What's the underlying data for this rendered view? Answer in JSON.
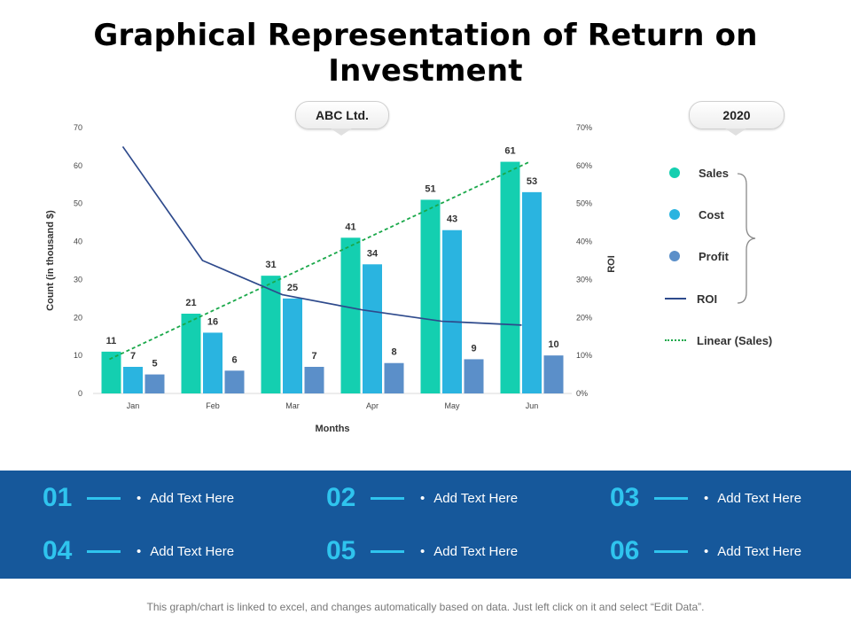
{
  "title": "Graphical Representation of Return on Investment",
  "company_badge": "ABC Ltd.",
  "year_badge": "2020",
  "colors": {
    "sales": "#14cfb0",
    "cost": "#2ab4e0",
    "profit": "#5b8fc9",
    "roi": "#2e4a8c",
    "linear": "#1aa84a",
    "band": "#16589b",
    "accent": "#2fc4ee"
  },
  "chart_data": {
    "type": "bar",
    "categories": [
      "Jan",
      "Feb",
      "Mar",
      "Apr",
      "May",
      "Jun"
    ],
    "series": [
      {
        "name": "Sales",
        "values": [
          11,
          21,
          31,
          41,
          51,
          61
        ]
      },
      {
        "name": "Cost",
        "values": [
          7,
          16,
          25,
          34,
          43,
          53
        ]
      },
      {
        "name": "Profit",
        "values": [
          5,
          6,
          7,
          8,
          9,
          10
        ]
      }
    ],
    "line_series": {
      "name": "ROI",
      "axis": "secondary",
      "values": [
        65,
        35,
        26,
        22,
        19,
        18
      ]
    },
    "trendline": {
      "name": "Linear (Sales)",
      "of": "Sales",
      "values": [
        9,
        19,
        30,
        41,
        51,
        61
      ]
    },
    "ylim": [
      0,
      70
    ],
    "y_ticks": [
      "0",
      "10",
      "20",
      "30",
      "40",
      "50",
      "60",
      "70"
    ],
    "y2lim": [
      0,
      70
    ],
    "y2_ticks": [
      "0%",
      "10%",
      "20%",
      "30%",
      "40%",
      "50%",
      "60%",
      "70%"
    ],
    "ylabel": "Count (in thousand $)",
    "y2label": "ROI",
    "xlabel": "Months"
  },
  "legend": [
    {
      "label": "Sales",
      "kind": "dot",
      "color": "#14cfb0"
    },
    {
      "label": "Cost",
      "kind": "dot",
      "color": "#2ab4e0"
    },
    {
      "label": "Profit",
      "kind": "dot",
      "color": "#5b8fc9"
    },
    {
      "label": "ROI",
      "kind": "line",
      "color": "#2e4a8c"
    },
    {
      "label": "Linear (Sales)",
      "kind": "dotted",
      "color": "#1aa84a"
    }
  ],
  "items": [
    {
      "num": "01",
      "text": "Add Text Here"
    },
    {
      "num": "02",
      "text": "Add Text Here"
    },
    {
      "num": "03",
      "text": "Add Text Here"
    },
    {
      "num": "04",
      "text": "Add Text Here"
    },
    {
      "num": "05",
      "text": "Add Text Here"
    },
    {
      "num": "06",
      "text": "Add Text Here"
    }
  ],
  "footer": "This graph/chart is linked to excel, and changes automatically based on data. Just left click on it and select “Edit Data”."
}
